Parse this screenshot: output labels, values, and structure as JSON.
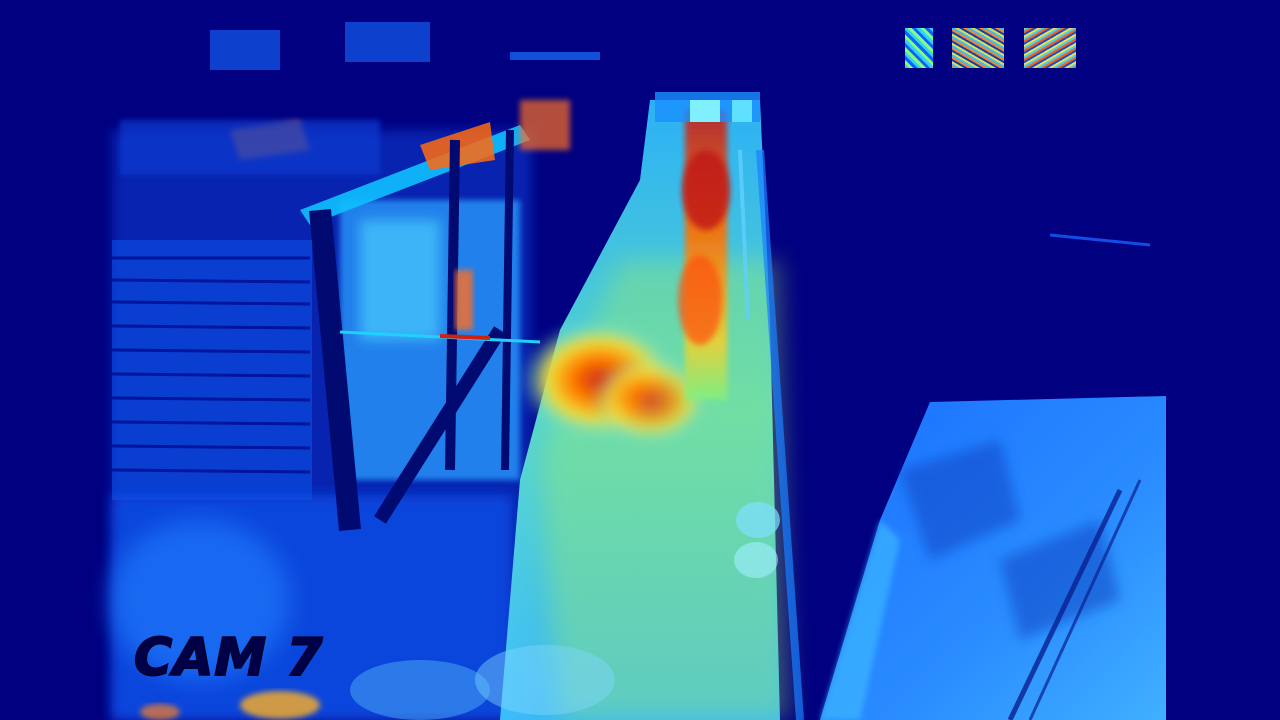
{
  "camera": {
    "label": "CAM 7"
  },
  "palette": {
    "background": "#000080",
    "cold": "#0033cc",
    "cool": "#0a6cff",
    "mid": "#18c8ff",
    "warm": "#e8f040",
    "hot": "#ff6a00",
    "hottest": "#c81010"
  },
  "overlay_icons": [
    "noise-glyph-icon",
    "noise-glyph-icon",
    "noise-glyph-icon"
  ]
}
